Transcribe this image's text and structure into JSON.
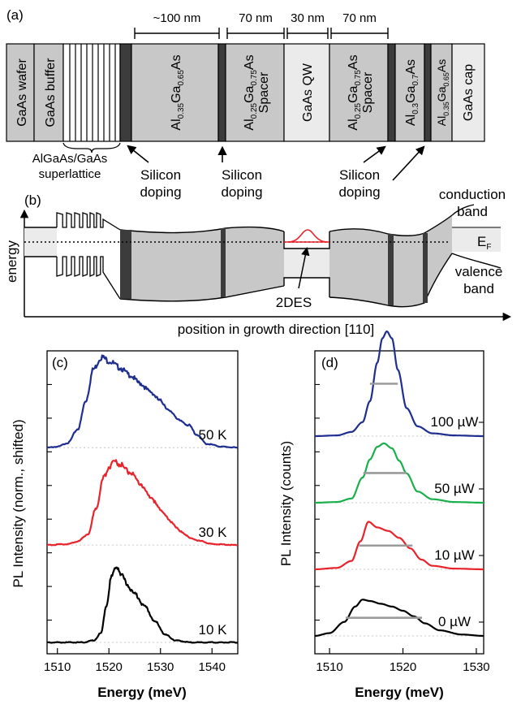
{
  "panel_a": {
    "label": "(a)",
    "dims": {
      "d100": "~100 nm",
      "d70a": "70 nm",
      "d30": "30 nm",
      "d70b": "70 nm"
    },
    "layers": {
      "wafer": "GaAs wafer",
      "buffer": "GaAs buffer",
      "qw": "GaAs QW",
      "cap": "GaAs cap",
      "barrier1": {
        "base": "Al",
        "s1": "0.35",
        "mid": "Ga",
        "s2": "0.65",
        "end": "As"
      },
      "spacer1": {
        "base": "Al",
        "s1": "0.25",
        "mid": "Ga",
        "s2": "0.75",
        "end": "As",
        "line2": "Spacer"
      },
      "spacer2": {
        "base": "Al",
        "s1": "0.25",
        "mid": "Ga",
        "s2": "0.75",
        "end": "As",
        "line2": "Spacer"
      },
      "barrier2": {
        "base": "Al",
        "s1": "0.3",
        "mid": "Ga",
        "s2": "0.7",
        "end": "As"
      },
      "barrier3": {
        "base": "Al",
        "s1": "0.35",
        "mid": "Ga",
        "s2": "0.65",
        "end": "As"
      }
    },
    "superlattice": {
      "line1": "AlGaAs/GaAs",
      "line2": "superlattice"
    },
    "doping": [
      {
        "line1": "Silicon",
        "line2": "doping"
      },
      {
        "line1": "Silicon",
        "line2": "doping"
      },
      {
        "line1": "Silicon",
        "line2": "doping"
      }
    ]
  },
  "panel_b": {
    "label": "(b)",
    "ylabel": "energy",
    "xlabel": "position in growth direction [110]",
    "conduction": {
      "line1": "conduction",
      "line2": "band"
    },
    "valence": {
      "line1": "valence",
      "line2": "band"
    },
    "fermi": {
      "base": "E",
      "sub": "F"
    },
    "twodes": "2DES"
  },
  "chart_data": [
    {
      "type": "line",
      "panel_label": "(c)",
      "xlabel": "Energy (meV)",
      "ylabel": "PL Intensity (norm., shifted)",
      "xlim": [
        1508,
        1545
      ],
      "xticks": [
        1510,
        1520,
        1530,
        1540
      ],
      "series": [
        {
          "name": "50 K",
          "color": "#1f2f8f",
          "offset": 2.2,
          "x": [
            1508,
            1510,
            1512,
            1514,
            1515.5,
            1517,
            1518.5,
            1520,
            1522,
            1524,
            1526,
            1528,
            1530,
            1532,
            1534,
            1535.5,
            1537,
            1539,
            1542,
            1545
          ],
          "y": [
            0.0,
            0.01,
            0.05,
            0.2,
            0.5,
            0.84,
            0.97,
            0.93,
            0.86,
            0.78,
            0.69,
            0.6,
            0.5,
            0.38,
            0.28,
            0.24,
            0.14,
            0.04,
            0.01,
            0.0
          ]
        },
        {
          "name": "30 K",
          "color": "#e8232b",
          "offset": 1.1,
          "x": [
            1508,
            1512,
            1514,
            1516,
            1517.5,
            1519,
            1520,
            1521,
            1522,
            1524,
            1526,
            1528,
            1530,
            1532,
            1534,
            1536,
            1538,
            1540,
            1545
          ],
          "y": [
            0.0,
            0.01,
            0.04,
            0.12,
            0.4,
            0.72,
            0.84,
            0.9,
            0.87,
            0.78,
            0.66,
            0.52,
            0.38,
            0.25,
            0.14,
            0.07,
            0.04,
            0.01,
            0.0
          ]
        },
        {
          "name": "10 K",
          "color": "#000000",
          "offset": 0.0,
          "x": [
            1508,
            1515,
            1517,
            1518.5,
            1519.5,
            1520.5,
            1521.5,
            1522.5,
            1523.5,
            1525,
            1527,
            1529,
            1531,
            1533,
            1536,
            1545
          ],
          "y": [
            0.0,
            0.0,
            0.02,
            0.1,
            0.4,
            0.7,
            0.82,
            0.72,
            0.62,
            0.52,
            0.38,
            0.22,
            0.08,
            0.02,
            0.0,
            0.0
          ]
        }
      ]
    },
    {
      "type": "line",
      "panel_label": "(d)",
      "xlabel": "Energy (meV)",
      "ylabel": "PL Intensity (counts)",
      "xlim": [
        1508,
        1531
      ],
      "xticks": [
        1510,
        1520,
        1530
      ],
      "series": [
        {
          "name": "100 µW",
          "color": "#1f2f8f",
          "offset": 3.0,
          "fwhm": [
            1515.5,
            1519.3
          ],
          "x": [
            1508,
            1511,
            1513,
            1514.5,
            1515.5,
            1516.5,
            1517.2,
            1517.8,
            1518.5,
            1519.3,
            1520.5,
            1522,
            1524,
            1527,
            1531
          ],
          "y": [
            0.0,
            0.01,
            0.06,
            0.2,
            0.5,
            1.05,
            1.4,
            1.5,
            1.4,
            0.95,
            0.4,
            0.14,
            0.04,
            0.01,
            0.0
          ]
        },
        {
          "name": "50 µW",
          "color": "#19b04b",
          "offset": 2.0,
          "fwhm": [
            1514.6,
            1520.5
          ],
          "x": [
            1508,
            1511,
            1513,
            1514.5,
            1515.5,
            1516.5,
            1517.4,
            1518.5,
            1519.5,
            1520.5,
            1522,
            1524,
            1527,
            1531
          ],
          "y": [
            0.0,
            0.01,
            0.06,
            0.36,
            0.62,
            0.8,
            0.85,
            0.78,
            0.6,
            0.42,
            0.16,
            0.05,
            0.01,
            0.0
          ]
        },
        {
          "name": "10 µW",
          "color": "#e8232b",
          "offset": 1.0,
          "fwhm": [
            1514.0,
            1521.3
          ],
          "x": [
            1508,
            1511,
            1513,
            1514.2,
            1515.3,
            1516.5,
            1518,
            1519.5,
            1521,
            1522.5,
            1524,
            1527,
            1531
          ],
          "y": [
            0.0,
            0.02,
            0.12,
            0.4,
            0.68,
            0.6,
            0.55,
            0.45,
            0.3,
            0.14,
            0.05,
            0.01,
            0.0
          ]
        },
        {
          "name": "0 µW",
          "color": "#000000",
          "offset": 0.0,
          "fwhm": [
            1512.2,
            1522.6
          ],
          "x": [
            1508,
            1510,
            1512,
            1513.5,
            1514.5,
            1515.5,
            1517,
            1518.5,
            1520,
            1521.5,
            1523,
            1525,
            1528,
            1531
          ],
          "y": [
            0.0,
            0.04,
            0.2,
            0.42,
            0.52,
            0.5,
            0.46,
            0.42,
            0.36,
            0.28,
            0.18,
            0.08,
            0.02,
            0.0
          ]
        }
      ]
    }
  ]
}
